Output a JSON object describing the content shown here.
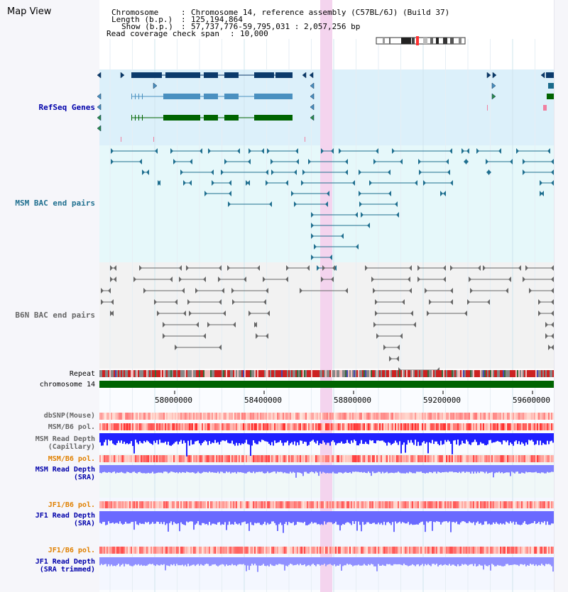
{
  "window": {
    "title": "Map View"
  },
  "info": {
    "chromosome_label": "Chromosome",
    "chromosome_value": "Chromosome 14, reference assembly (C57BL/6J) (Build 37)",
    "length_label": "Length (b.p.)",
    "length_value": "125,194,864",
    "show_label": "Show (b.p.)",
    "show_value": "57,737,776-59,795,031 : 2,057,256 bp",
    "coverage_label": "Read coverage check span",
    "coverage_value": "10,000"
  },
  "tracks": {
    "refseq": "RefSeq Genes",
    "msm_bac": "MSM BAC end pairs",
    "b6n_bac": "B6N BAC end pairs",
    "repeat": "Repeat",
    "chromosome": "chromosome 14",
    "dbsnp": "dbSNP(Mouse)",
    "msm_pol": "MSM/B6 pol.",
    "msm_cap": "MSM Read Depth\n(Capillary)",
    "msm_pol2": "MSM/B6 pol.",
    "msm_sra": "MSM Read Depth\n(SRA)",
    "jf1_pol": "JF1/B6 pol.",
    "jf1_sra": "JF1 Read Depth\n(SRA)",
    "jf1_pol2": "JF1/B6 pol.",
    "jf1_trim": "JF1 Read Depth\n(SRA trimmed)"
  },
  "axis": {
    "ticks": [
      "58000000",
      "58400000",
      "58800000",
      "59200000",
      "59600000"
    ]
  },
  "colors": {
    "refseq_bg": "#dcf0fa",
    "msm_bg": "#e6f8fa",
    "b6n_bg": "#f2f2f2",
    "highlight": "#f4d4ee",
    "chrom_bar": "#006400",
    "gene_dark": "#0b3a6b",
    "gene_mid": "#4a90c0",
    "gene_green": "#006400",
    "bac_msm": "#1f6f8f",
    "bac_b6n": "#666666",
    "depth_blue": "#2020ff",
    "depth_light": "#8080ff"
  },
  "icons": {
    "ideogram": "chromosome-ideogram-icon"
  }
}
